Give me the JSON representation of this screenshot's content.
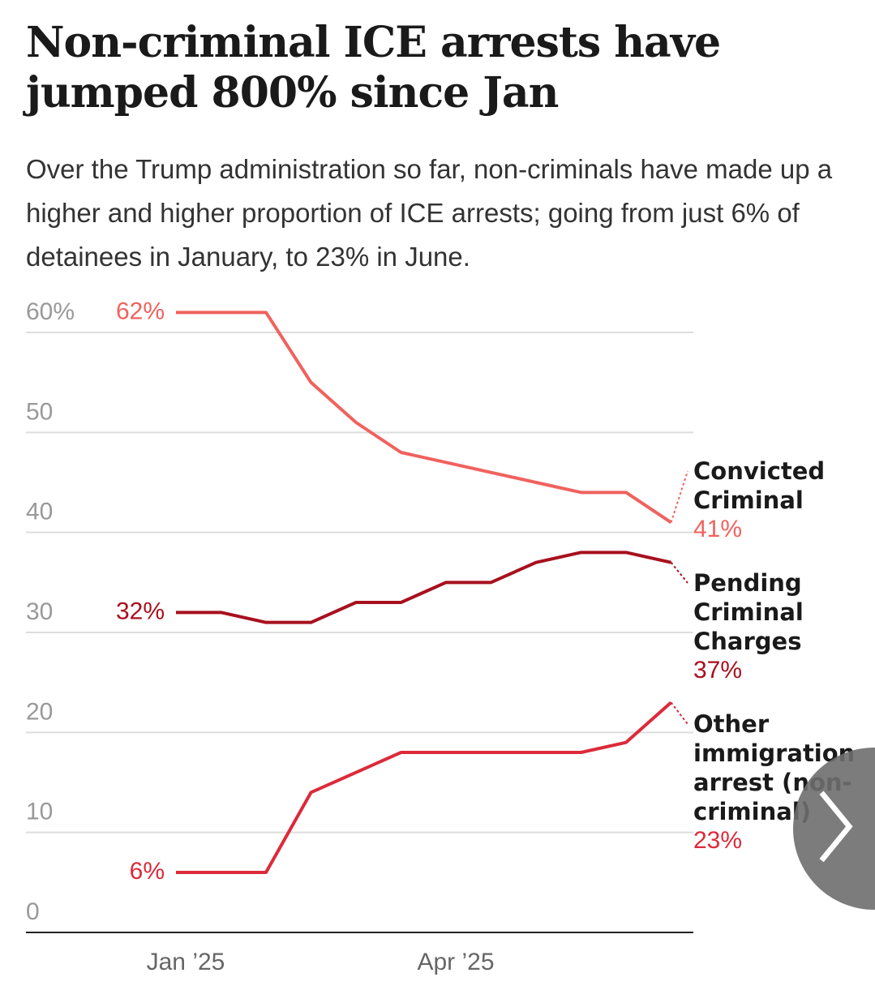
{
  "chart_data": {
    "type": "line",
    "title": "Non-criminal ICE arrests have jumped 800% since Jan",
    "subtitle": "Over the Trump administration so far, non-criminals have made up a higher and higher proportion of ICE arrests; going from just 6% of detainees in January, to 23% in June.",
    "categories": [
      "Jan ’25",
      null,
      null,
      null,
      null,
      null,
      "Apr ’25",
      null,
      null,
      null,
      null,
      null
    ],
    "series": [
      {
        "name": "Convicted Criminal",
        "color": "#f0625e",
        "values": [
          62,
          62,
          62,
          55,
          51,
          48,
          47,
          46,
          45,
          44,
          44,
          41
        ],
        "value_labels": [
          "62%",
          null,
          null,
          null,
          null,
          null,
          null,
          null,
          null,
          null,
          null,
          "41%"
        ]
      },
      {
        "name": "Pending Criminal Charges",
        "color": "#a8101e",
        "values": [
          32,
          32,
          31,
          31,
          33,
          33,
          35,
          35,
          37,
          38,
          38,
          37
        ],
        "value_labels": [
          "32%",
          null,
          null,
          null,
          null,
          null,
          null,
          null,
          null,
          null,
          null,
          "37%"
        ]
      },
      {
        "name": "Other immigration arrest (non-criminal)",
        "color": "#dc2a3a",
        "values": [
          6,
          6,
          6,
          14,
          16,
          18,
          18,
          18,
          18,
          18,
          19,
          23
        ],
        "value_labels": [
          "6%",
          null,
          null,
          null,
          null,
          null,
          null,
          null,
          null,
          null,
          null,
          "23%"
        ]
      }
    ],
    "ylim": [
      0,
      60
    ],
    "yticks": [
      0,
      10,
      20,
      30,
      40,
      50,
      {
        "value": 60,
        "label": "60%"
      }
    ],
    "grid": true
  }
}
